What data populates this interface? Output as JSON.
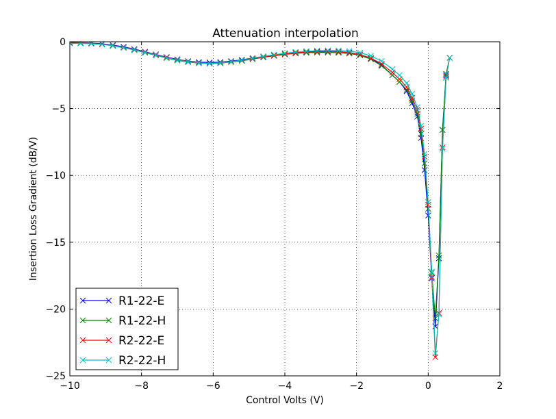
{
  "chart_data": {
    "type": "line",
    "title": "Attenuation interpolation",
    "xlabel": "Control Volts (V)",
    "ylabel": "Insertion Loss Gradient (dB/V)",
    "xlim": [
      -10,
      2
    ],
    "ylim": [
      -25,
      0
    ],
    "xticks": [
      -10,
      -8,
      -6,
      -4,
      -2,
      0,
      2
    ],
    "yticks": [
      -25,
      -20,
      -15,
      -10,
      -5,
      0
    ],
    "xtick_labels": [
      "−10",
      "−8",
      "−6",
      "−4",
      "−2",
      "0",
      "2"
    ],
    "ytick_labels": [
      "−25",
      "−20",
      "−15",
      "−10",
      "−5",
      "0"
    ],
    "grid": true,
    "legend_position": "lower-left",
    "marker": "x",
    "series": [
      {
        "name": "R1-22-E",
        "color": "#0000ff",
        "x": [
          -10.0,
          -9.7,
          -9.4,
          -9.1,
          -8.8,
          -8.5,
          -8.2,
          -7.9,
          -7.6,
          -7.3,
          -7.0,
          -6.7,
          -6.4,
          -6.1,
          -5.8,
          -5.5,
          -5.2,
          -4.9,
          -4.6,
          -4.3,
          -4.0,
          -3.7,
          -3.4,
          -3.1,
          -2.8,
          -2.5,
          -2.2,
          -1.9,
          -1.6,
          -1.3,
          -1.0,
          -0.8,
          -0.6,
          -0.45,
          -0.3,
          -0.2,
          -0.1,
          0.0,
          0.1,
          0.2,
          0.3,
          0.4,
          0.5,
          0.6
        ],
        "y": [
          -0.05,
          -0.07,
          -0.1,
          -0.15,
          -0.25,
          -0.38,
          -0.55,
          -0.75,
          -0.95,
          -1.15,
          -1.32,
          -1.45,
          -1.52,
          -1.55,
          -1.52,
          -1.45,
          -1.35,
          -1.22,
          -1.1,
          -0.98,
          -0.88,
          -0.8,
          -0.75,
          -0.72,
          -0.72,
          -0.74,
          -0.8,
          -0.95,
          -1.25,
          -1.75,
          -2.5,
          -3.0,
          -3.7,
          -4.6,
          -5.6,
          -7.2,
          -9.6,
          -13.0,
          -17.7,
          -21.3,
          -16.2,
          -6.6,
          -2.5,
          -1.2
        ]
      },
      {
        "name": "R1-22-H",
        "color": "#008000",
        "x": [
          -10.0,
          -9.7,
          -9.4,
          -9.1,
          -8.8,
          -8.5,
          -8.2,
          -7.9,
          -7.6,
          -7.3,
          -7.0,
          -6.7,
          -6.4,
          -6.1,
          -5.8,
          -5.5,
          -5.2,
          -4.9,
          -4.6,
          -4.3,
          -4.0,
          -3.7,
          -3.4,
          -3.1,
          -2.8,
          -2.5,
          -2.2,
          -1.9,
          -1.6,
          -1.3,
          -1.0,
          -0.8,
          -0.6,
          -0.45,
          -0.3,
          -0.2,
          -0.1,
          0.0,
          0.1,
          0.2,
          0.3,
          0.4,
          0.5,
          0.6
        ],
        "y": [
          -0.08,
          -0.09,
          -0.12,
          -0.18,
          -0.3,
          -0.45,
          -0.62,
          -0.82,
          -1.02,
          -1.22,
          -1.4,
          -1.52,
          -1.6,
          -1.63,
          -1.6,
          -1.52,
          -1.42,
          -1.3,
          -1.17,
          -1.05,
          -0.95,
          -0.87,
          -0.82,
          -0.8,
          -0.8,
          -0.82,
          -0.88,
          -1.02,
          -1.3,
          -1.8,
          -2.5,
          -3.0,
          -3.6,
          -4.4,
          -5.4,
          -6.9,
          -9.1,
          -12.5,
          -17.3,
          -20.7,
          -16.0,
          -6.6,
          -2.4,
          -1.2
        ]
      },
      {
        "name": "R2-22-E",
        "color": "#ff0000",
        "x": [
          -10.0,
          -9.7,
          -9.4,
          -9.1,
          -8.8,
          -8.5,
          -8.2,
          -7.9,
          -7.6,
          -7.3,
          -7.0,
          -6.7,
          -6.4,
          -6.1,
          -5.8,
          -5.5,
          -5.2,
          -4.9,
          -4.6,
          -4.3,
          -4.0,
          -3.7,
          -3.4,
          -3.1,
          -2.8,
          -2.5,
          -2.2,
          -1.9,
          -1.6,
          -1.3,
          -1.0,
          -0.8,
          -0.6,
          -0.45,
          -0.3,
          -0.2,
          -0.1,
          0.0,
          0.1,
          0.2,
          0.3,
          0.4,
          0.5,
          0.6
        ],
        "y": [
          -0.1,
          -0.1,
          -0.13,
          -0.18,
          -0.28,
          -0.42,
          -0.58,
          -0.78,
          -0.98,
          -1.18,
          -1.35,
          -1.48,
          -1.56,
          -1.6,
          -1.57,
          -1.5,
          -1.4,
          -1.27,
          -1.14,
          -1.02,
          -0.92,
          -0.84,
          -0.78,
          -0.75,
          -0.74,
          -0.76,
          -0.82,
          -0.96,
          -1.22,
          -1.65,
          -2.3,
          -2.8,
          -3.4,
          -4.2,
          -5.1,
          -6.5,
          -8.6,
          -12.2,
          -17.6,
          -23.6,
          -20.3,
          -7.9,
          -2.6,
          -1.2
        ]
      },
      {
        "name": "R2-22-H",
        "color": "#00bfbf",
        "x": [
          -10.0,
          -9.7,
          -9.4,
          -9.1,
          -8.8,
          -8.5,
          -8.2,
          -7.9,
          -7.6,
          -7.3,
          -7.0,
          -6.7,
          -6.4,
          -6.1,
          -5.8,
          -5.5,
          -5.2,
          -4.9,
          -4.6,
          -4.3,
          -4.0,
          -3.7,
          -3.4,
          -3.1,
          -2.8,
          -2.5,
          -2.2,
          -1.9,
          -1.6,
          -1.3,
          -1.0,
          -0.8,
          -0.6,
          -0.45,
          -0.3,
          -0.2,
          -0.1,
          0.0,
          0.1,
          0.2,
          0.3,
          0.4,
          0.5,
          0.6
        ],
        "y": [
          -0.12,
          -0.12,
          -0.15,
          -0.2,
          -0.3,
          -0.44,
          -0.6,
          -0.8,
          -1.0,
          -1.2,
          -1.37,
          -1.5,
          -1.58,
          -1.62,
          -1.58,
          -1.5,
          -1.38,
          -1.24,
          -1.1,
          -0.97,
          -0.86,
          -0.77,
          -0.71,
          -0.67,
          -0.65,
          -0.66,
          -0.7,
          -0.82,
          -1.05,
          -1.45,
          -2.05,
          -2.5,
          -3.1,
          -3.9,
          -4.9,
          -6.3,
          -8.4,
          -12.0,
          -17.2,
          -23.3,
          -20.4,
          -8.0,
          -2.7,
          -1.2
        ]
      }
    ]
  }
}
